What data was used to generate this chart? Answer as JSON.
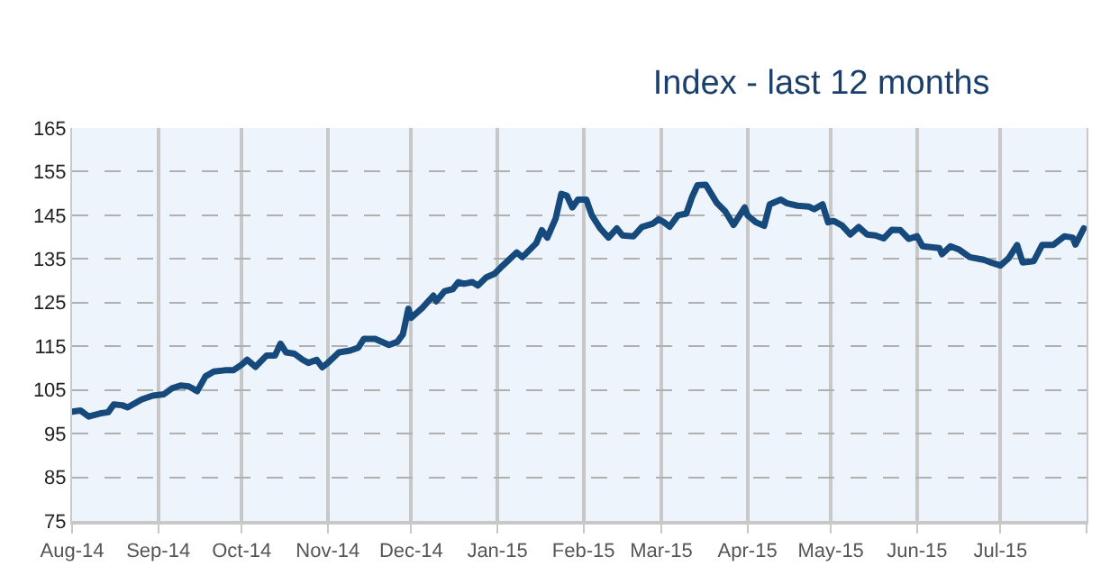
{
  "chart_data": {
    "type": "line",
    "title": "Index - last 12 months",
    "x": [
      "2014-08-01",
      "2014-08-04",
      "2014-08-07",
      "2014-08-11",
      "2014-08-14",
      "2014-08-16",
      "2014-08-19",
      "2014-08-21",
      "2014-08-26",
      "2014-08-30",
      "2014-09-03",
      "2014-09-06",
      "2014-09-09",
      "2014-09-12",
      "2014-09-14",
      "2014-09-15",
      "2014-09-18",
      "2014-09-21",
      "2014-09-25",
      "2014-09-28",
      "2014-10-01",
      "2014-10-03",
      "2014-10-06",
      "2014-10-10",
      "2014-10-13",
      "2014-10-15",
      "2014-10-17",
      "2014-10-20",
      "2014-10-23",
      "2014-10-25",
      "2014-10-28",
      "2014-10-30",
      "2014-11-01",
      "2014-11-05",
      "2014-11-09",
      "2014-11-12",
      "2014-11-14",
      "2014-11-18",
      "2014-11-23",
      "2014-11-26",
      "2014-11-28",
      "2014-11-30",
      "2014-12-01",
      "2014-12-05",
      "2014-12-09",
      "2014-12-10",
      "2014-12-13",
      "2014-12-16",
      "2014-12-18",
      "2014-12-20",
      "2014-12-23",
      "2014-12-25",
      "2014-12-28",
      "2014-12-31",
      "2015-01-03",
      "2015-01-08",
      "2015-01-10",
      "2015-01-15",
      "2015-01-17",
      "2015-01-19",
      "2015-01-22",
      "2015-01-24",
      "2015-01-26",
      "2015-01-28",
      "2015-01-30",
      "2015-02-02",
      "2015-02-04",
      "2015-02-07",
      "2015-02-10",
      "2015-02-13",
      "2015-02-15",
      "2015-02-19",
      "2015-02-22",
      "2015-02-26",
      "2015-02-28",
      "2015-03-02",
      "2015-03-04",
      "2015-03-07",
      "2015-03-10",
      "2015-03-12",
      "2015-03-14",
      "2015-03-17",
      "2015-03-21",
      "2015-03-24",
      "2015-03-27",
      "2015-03-31",
      "2015-04-01",
      "2015-04-04",
      "2015-04-07",
      "2015-04-09",
      "2015-04-13",
      "2015-04-15",
      "2015-04-19",
      "2015-04-23",
      "2015-04-25",
      "2015-04-28",
      "2015-04-30",
      "2015-05-02",
      "2015-05-05",
      "2015-05-08",
      "2015-05-11",
      "2015-05-14",
      "2015-05-17",
      "2015-05-20",
      "2015-05-23",
      "2015-05-26",
      "2015-05-29",
      "2015-06-01",
      "2015-06-03",
      "2015-06-09",
      "2015-06-10",
      "2015-06-13",
      "2015-06-16",
      "2015-06-20",
      "2015-06-25",
      "2015-06-28",
      "2015-07-01",
      "2015-07-04",
      "2015-07-07",
      "2015-07-09",
      "2015-07-13",
      "2015-07-16",
      "2015-07-20",
      "2015-07-24",
      "2015-07-27",
      "2015-07-28",
      "2015-07-31"
    ],
    "series": [
      {
        "color": "#174a7c",
        "values": [
          100.0,
          100.3,
          98.9,
          99.6,
          99.9,
          101.7,
          101.5,
          101.0,
          102.8,
          103.7,
          104.0,
          105.4,
          106.0,
          105.8,
          105.1,
          104.7,
          108.1,
          109.2,
          109.5,
          109.5,
          110.8,
          111.9,
          110.3,
          112.9,
          112.9,
          115.6,
          113.6,
          113.3,
          111.9,
          111.2,
          111.9,
          110.2,
          111.2,
          113.6,
          114.0,
          114.7,
          116.7,
          116.7,
          115.3,
          116.0,
          117.7,
          123.6,
          121.5,
          123.8,
          126.6,
          125.3,
          127.6,
          128.1,
          129.7,
          129.3,
          129.7,
          128.9,
          130.8,
          131.6,
          133.5,
          136.5,
          135.4,
          138.6,
          141.6,
          139.9,
          144.3,
          149.9,
          149.5,
          146.8,
          148.6,
          148.6,
          145.0,
          142.0,
          139.9,
          142.0,
          140.4,
          140.2,
          142.3,
          143.1,
          144.1,
          143.4,
          142.4,
          145.0,
          145.4,
          149.1,
          151.9,
          152.0,
          147.8,
          145.9,
          142.8,
          146.8,
          145.0,
          143.4,
          142.6,
          147.5,
          148.6,
          147.8,
          147.2,
          147.0,
          146.4,
          147.5,
          143.4,
          143.7,
          142.7,
          140.6,
          142.3,
          140.6,
          140.4,
          139.7,
          141.7,
          141.6,
          139.6,
          140.2,
          137.9,
          137.5,
          136.1,
          137.9,
          137.2,
          135.4,
          134.8,
          134.1,
          133.5,
          135.2,
          138.2,
          134.2,
          134.5,
          138.2,
          138.2,
          140.2,
          139.9,
          138.3,
          142.0
        ]
      }
    ],
    "xlim": [
      "2014-08-01",
      "2015-08-01"
    ],
    "xticks": [
      {
        "value": "2014-08-01",
        "label": "Aug-14"
      },
      {
        "value": "2014-09-01",
        "label": "Sep-14"
      },
      {
        "value": "2014-10-01",
        "label": "Oct-14"
      },
      {
        "value": "2014-11-01",
        "label": "Nov-14"
      },
      {
        "value": "2014-12-01",
        "label": "Dec-14"
      },
      {
        "value": "2015-01-01",
        "label": "Jan-15"
      },
      {
        "value": "2015-02-01",
        "label": "Feb-15"
      },
      {
        "value": "2015-03-01",
        "label": "Mar-15"
      },
      {
        "value": "2015-04-01",
        "label": "Apr-15"
      },
      {
        "value": "2015-05-01",
        "label": "May-15"
      },
      {
        "value": "2015-06-01",
        "label": "Jun-15"
      },
      {
        "value": "2015-07-01",
        "label": "Jul-15"
      },
      {
        "value": "2015-08-01",
        "label": null
      }
    ],
    "ylim": [
      75,
      165
    ],
    "yticks": [
      75,
      85,
      95,
      105,
      115,
      125,
      135,
      145,
      155,
      165
    ],
    "grid": true,
    "marker": "none",
    "line_style": "solid"
  }
}
